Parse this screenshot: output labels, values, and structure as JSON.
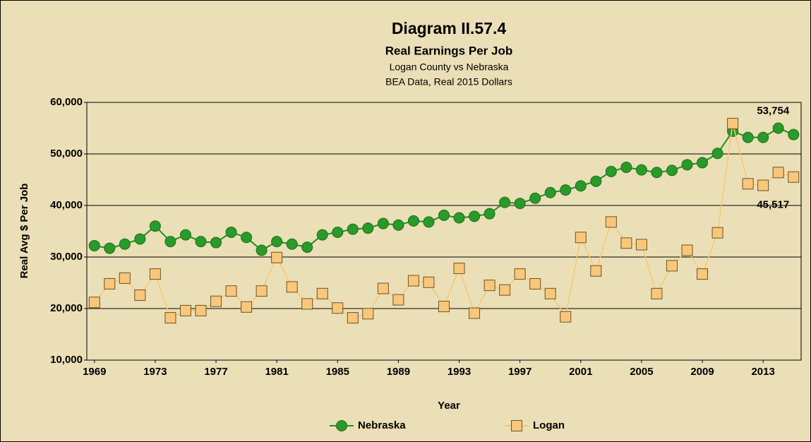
{
  "chart_data": {
    "type": "line",
    "title": "Diagram II.57.4",
    "subtitle": "Real Earnings Per Job",
    "subtitle2": "Logan County vs Nebraska",
    "subtitle3": "BEA Data, Real 2015 Dollars",
    "x_label": "Year",
    "y_label": "Real Avg $ Per Job",
    "x": [
      1969,
      1970,
      1971,
      1972,
      1973,
      1974,
      1975,
      1976,
      1977,
      1978,
      1979,
      1980,
      1981,
      1982,
      1983,
      1984,
      1985,
      1986,
      1987,
      1988,
      1989,
      1990,
      1991,
      1992,
      1993,
      1994,
      1995,
      1996,
      1997,
      1998,
      1999,
      2000,
      2001,
      2002,
      2003,
      2004,
      2005,
      2006,
      2007,
      2008,
      2009,
      2010,
      2011,
      2012,
      2013,
      2014,
      2015
    ],
    "xlim": [
      1968.5,
      2015.5
    ],
    "xticks": [
      1969,
      1973,
      1977,
      1981,
      1985,
      1989,
      1993,
      1997,
      2001,
      2005,
      2009,
      2013
    ],
    "ylim": [
      10000,
      60000
    ],
    "yticks": [
      {
        "value": 10000,
        "label": "10,000"
      },
      {
        "value": 20000,
        "label": "20,000"
      },
      {
        "value": 30000,
        "label": "30,000"
      },
      {
        "value": 40000,
        "label": "40,000"
      },
      {
        "value": 50000,
        "label": "50,000"
      },
      {
        "value": 60000,
        "label": "60,000"
      }
    ],
    "grid": true,
    "legend": "bottom",
    "series": [
      {
        "name": "Nebraska",
        "color": "#1f8f1f",
        "marker": "circle",
        "values": [
          32200,
          31700,
          32500,
          33500,
          36000,
          33000,
          34300,
          33000,
          32800,
          34800,
          33800,
          31300,
          33000,
          32500,
          31900,
          34300,
          34800,
          35400,
          35600,
          36500,
          36200,
          37000,
          36800,
          38100,
          37600,
          37900,
          38400,
          40600,
          40400,
          41400,
          42500,
          43000,
          43800,
          44700,
          46600,
          47400,
          46900,
          46400,
          46800,
          47900,
          48300,
          50100,
          54400,
          53200,
          53200,
          55000,
          53754
        ],
        "value_labels": [
          null,
          null,
          null,
          null,
          null,
          null,
          null,
          null,
          null,
          null,
          null,
          null,
          null,
          null,
          null,
          null,
          null,
          null,
          null,
          null,
          null,
          null,
          null,
          null,
          null,
          null,
          null,
          null,
          null,
          null,
          null,
          null,
          null,
          null,
          null,
          null,
          null,
          null,
          null,
          null,
          null,
          null,
          null,
          null,
          null,
          null,
          "53,754"
        ]
      },
      {
        "name": "Logan",
        "color": "#f7c86e",
        "marker": "square",
        "values": [
          21200,
          24800,
          25900,
          22600,
          26700,
          18200,
          19600,
          19600,
          21400,
          23400,
          20300,
          23400,
          29900,
          24200,
          20900,
          22900,
          20100,
          18200,
          19000,
          23900,
          21700,
          25400,
          25100,
          20400,
          27800,
          19100,
          24500,
          23600,
          26700,
          24800,
          22900,
          18400,
          33800,
          27300,
          36800,
          32700,
          32400,
          22900,
          28300,
          31300,
          26700,
          34700,
          55900,
          44200,
          43900,
          46400,
          45517
        ],
        "value_labels": [
          null,
          null,
          null,
          null,
          null,
          null,
          null,
          null,
          null,
          null,
          null,
          null,
          null,
          null,
          null,
          null,
          null,
          null,
          null,
          null,
          null,
          null,
          null,
          null,
          null,
          null,
          null,
          null,
          null,
          null,
          null,
          null,
          null,
          null,
          null,
          null,
          null,
          null,
          null,
          null,
          null,
          null,
          null,
          null,
          null,
          null,
          "45,517"
        ]
      }
    ]
  }
}
